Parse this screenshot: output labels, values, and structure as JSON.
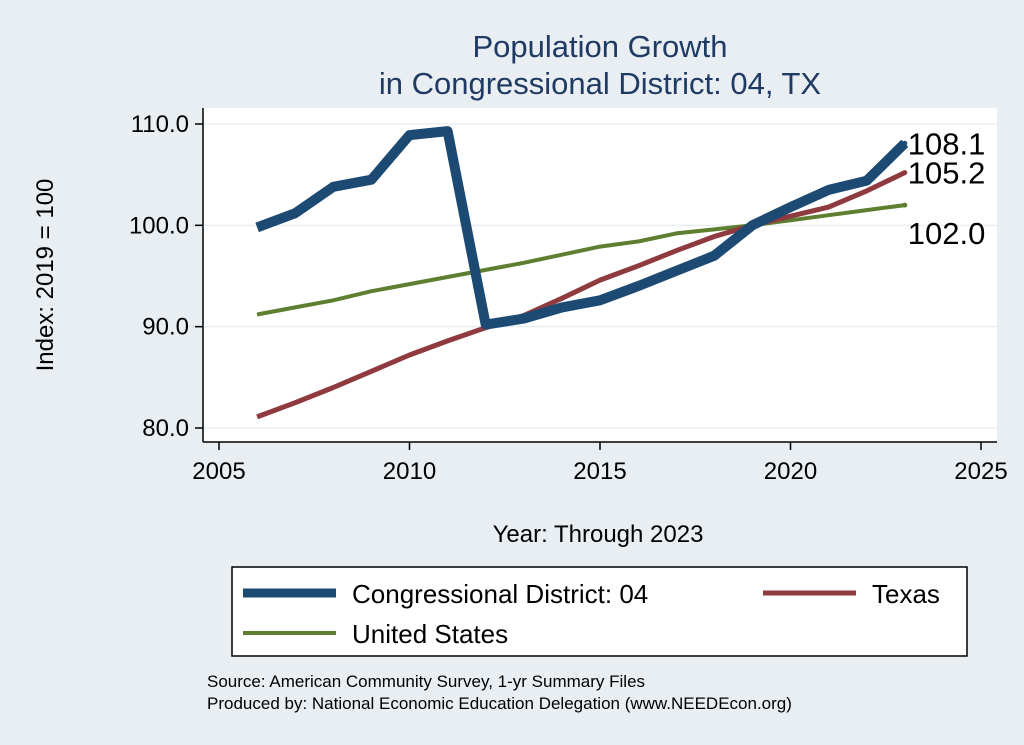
{
  "chart_data": {
    "type": "line",
    "title_lines": [
      "Population Growth",
      "in Congressional District: 04, TX"
    ],
    "xlabel": "Year: Through 2023",
    "ylabel": "Index: 2019 = 100",
    "xlim": [
      2005,
      2025
    ],
    "ylim": [
      80,
      110
    ],
    "x_ticks": [
      2005,
      2010,
      2015,
      2020,
      2025
    ],
    "y_ticks": [
      80,
      90,
      100,
      110
    ],
    "y_tick_labels": [
      "80.0",
      "90.0",
      "100.0",
      "110.0"
    ],
    "grid": true,
    "x": [
      2006,
      2007,
      2008,
      2009,
      2010,
      2011,
      2012,
      2013,
      2014,
      2015,
      2016,
      2017,
      2018,
      2019,
      2020,
      2021,
      2022,
      2023
    ],
    "series": [
      {
        "name": "Congressional District: 04",
        "color": "#1d4a72",
        "values": [
          99.8,
          101.2,
          103.8,
          104.5,
          108.9,
          109.3,
          90.2,
          90.8,
          91.9,
          92.6,
          94.0,
          95.5,
          97.0,
          100.0,
          101.8,
          103.5,
          104.4,
          108.1
        ],
        "end_label": "108.1"
      },
      {
        "name": "Texas",
        "color": "#8f3a3e",
        "values": [
          81.1,
          82.5,
          84.0,
          85.6,
          87.2,
          88.6,
          89.9,
          91.1,
          92.8,
          94.6,
          96.0,
          97.5,
          98.9,
          100.0,
          100.9,
          101.8,
          103.4,
          105.2
        ],
        "end_label": "105.2"
      },
      {
        "name": "United States",
        "color": "#5e7f2f",
        "values": [
          91.2,
          91.9,
          92.6,
          93.5,
          94.2,
          94.9,
          95.6,
          96.3,
          97.1,
          97.9,
          98.4,
          99.2,
          99.6,
          100.0,
          100.5,
          101.0,
          101.5,
          102.0
        ],
        "end_label": "102.0"
      }
    ],
    "legend_position": "bottom"
  },
  "footer": {
    "source": "Source: American Community Survey, 1-yr Summary Files",
    "producer": "Produced by: National Economic Education Delegation (www.NEEDEcon.org)"
  }
}
